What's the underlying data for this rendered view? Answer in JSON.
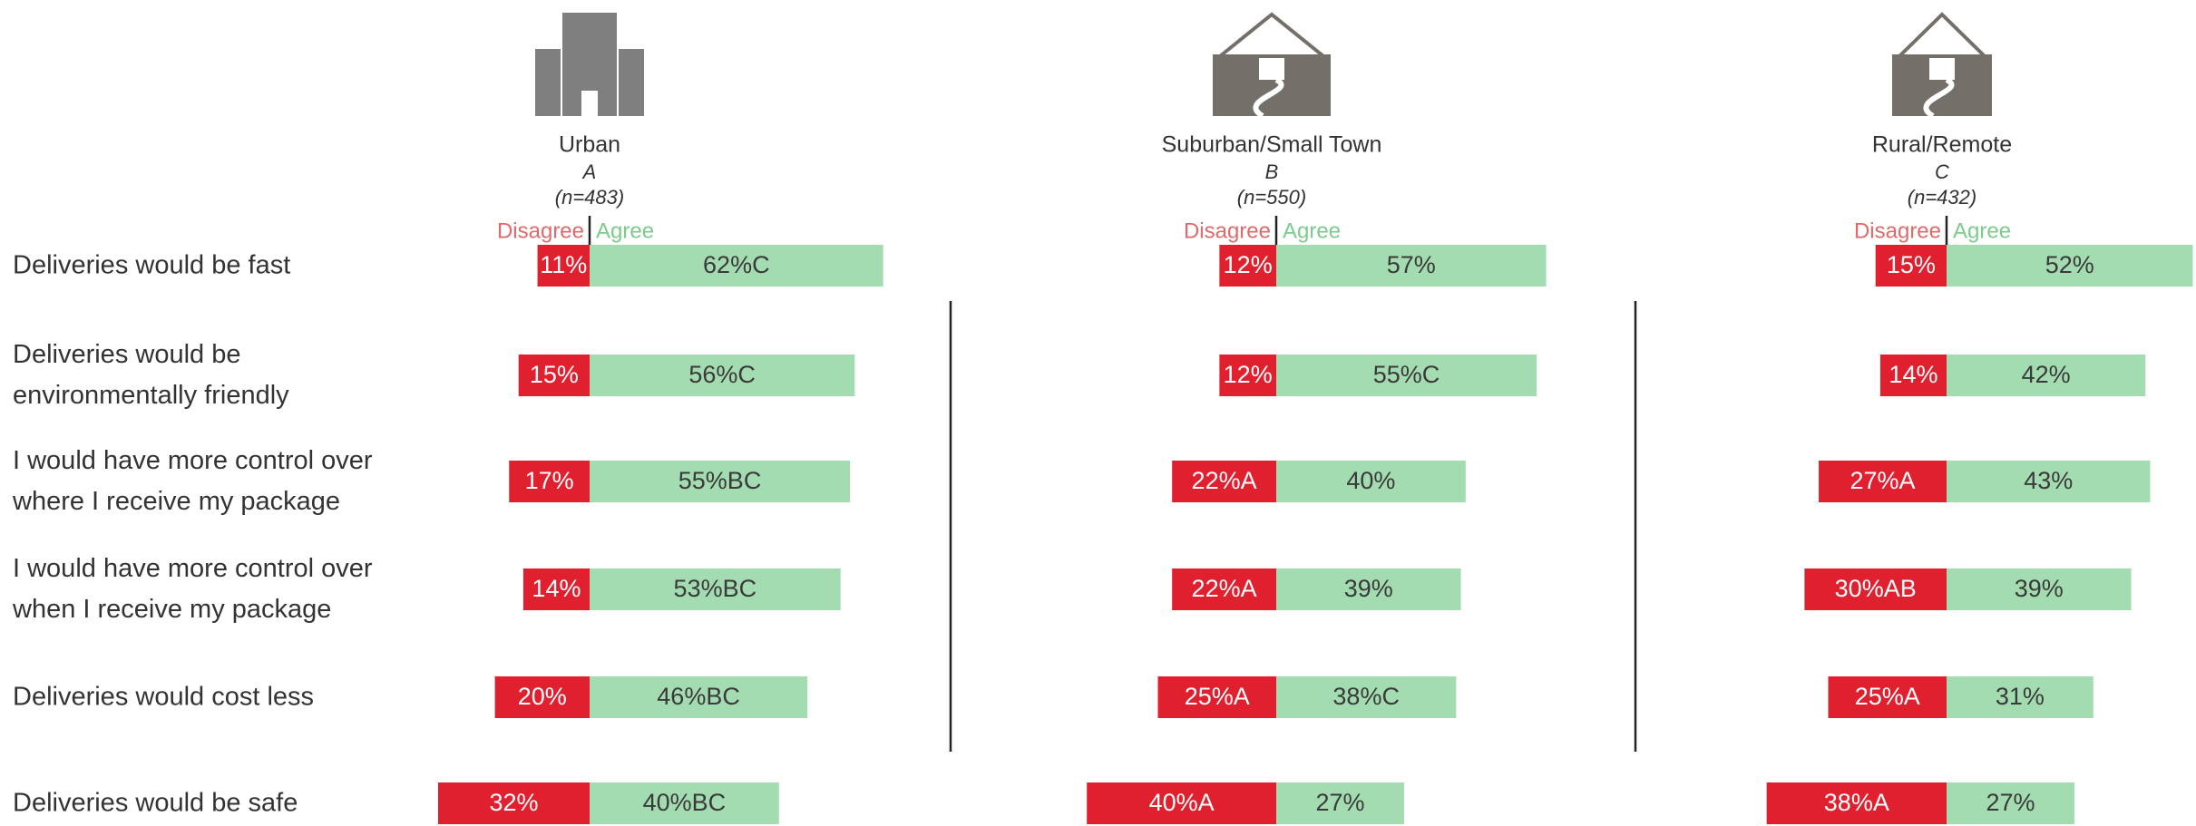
{
  "chart_data": {
    "type": "diverging_bar",
    "categories": [
      "Deliveries would be fast",
      "Deliveries would be environmentally friendly",
      "I would have more control over where I receive my package",
      "I would have more control over when I receive my package",
      "Deliveries would cost less",
      "Deliveries would be safe"
    ],
    "panels": [
      {
        "title": "Urban",
        "subtitle": "A",
        "note": "(n=483)",
        "series": [
          {
            "name": "Disagree",
            "color": "#e0202f",
            "values": [
              11,
              15,
              17,
              14,
              20,
              32
            ],
            "value_labels": [
              "11%",
              "15%",
              "17%",
              "14%",
              "20%",
              "32%"
            ]
          },
          {
            "name": "Agree",
            "color": "#a3dcb0",
            "values": [
              62,
              56,
              55,
              53,
              46,
              40
            ],
            "value_labels": [
              "62%C",
              "56%C",
              "55%BC",
              "53%BC",
              "46%BC",
              "40%BC"
            ]
          }
        ]
      },
      {
        "title": "Suburban/Small Town",
        "subtitle": "B",
        "note": "(n=550)",
        "series": [
          {
            "name": "Disagree",
            "color": "#e0202f",
            "values": [
              12,
              12,
              22,
              22,
              25,
              40
            ],
            "value_labels": [
              "12%",
              "12%",
              "22%A",
              "22%A",
              "25%A",
              "40%A"
            ]
          },
          {
            "name": "Agree",
            "color": "#a3dcb0",
            "values": [
              57,
              55,
              40,
              39,
              38,
              27
            ],
            "value_labels": [
              "57%",
              "55%C",
              "40%",
              "39%",
              "38%C",
              "27%"
            ]
          }
        ]
      },
      {
        "title": "Rural/Remote",
        "subtitle": "C",
        "note": "(n=432)",
        "series": [
          {
            "name": "Disagree",
            "color": "#e0202f",
            "values": [
              15,
              14,
              27,
              30,
              25,
              38
            ],
            "value_labels": [
              "15%",
              "14%",
              "27%A",
              "30%AB",
              "25%A",
              "38%A"
            ]
          },
          {
            "name": "Agree",
            "color": "#a3dcb0",
            "values": [
              52,
              42,
              43,
              39,
              31,
              27
            ],
            "value_labels": [
              "52%",
              "42%",
              "43%",
              "39%",
              "31%",
              "27%"
            ]
          }
        ]
      }
    ]
  }
}
